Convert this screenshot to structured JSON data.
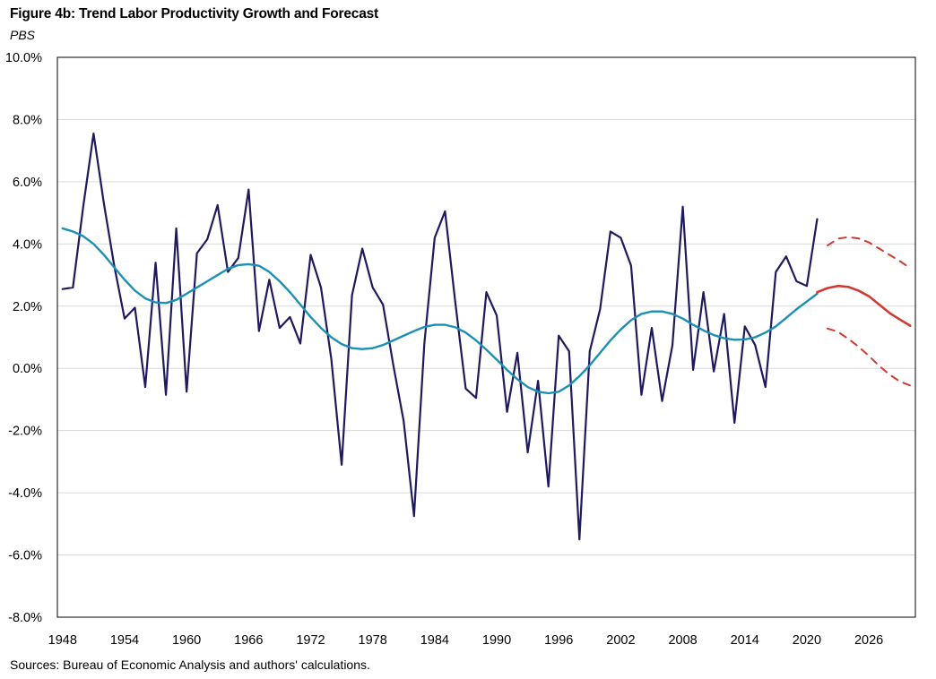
{
  "chart_data": {
    "type": "line",
    "title": "Figure 4b: Trend Labor Productivity Growth and Forecast",
    "subtitle": "PBS",
    "source": "Sources: Bureau of Economic Analysis and authors' calculations.",
    "xlabel": "",
    "ylabel": "",
    "xlim": [
      1947.5,
      2030.5
    ],
    "ylim": [
      -8,
      10
    ],
    "y_ticks": [
      -8,
      -6,
      -4,
      -2,
      0,
      2,
      4,
      6,
      8,
      10
    ],
    "y_tick_labels": [
      "-8.0%",
      "-6.0%",
      "-4.0%",
      "-2.0%",
      "0.0%",
      "2.0%",
      "4.0%",
      "6.0%",
      "8.0%",
      "10.0%"
    ],
    "x_ticks": [
      1948,
      1954,
      1960,
      1966,
      1972,
      1978,
      1984,
      1990,
      1996,
      2002,
      2008,
      2014,
      2020,
      2026
    ],
    "x_tick_labels": [
      "1948",
      "1954",
      "1960",
      "1966",
      "1972",
      "1978",
      "1984",
      "1990",
      "1996",
      "2002",
      "2008",
      "2014",
      "2020",
      "2026"
    ],
    "grid": true,
    "legend": "none",
    "colors": {
      "actual": "#1f1a5e",
      "trend": "#1c8fb4",
      "forecast": "#cf3a32",
      "grid": "#d9d9d9",
      "border": "#000000"
    },
    "series": [
      {
        "name": "Labor productivity growth",
        "style": "solid",
        "x": [
          1948,
          1949,
          1950,
          1951,
          1952,
          1953,
          1954,
          1955,
          1956,
          1957,
          1958,
          1959,
          1960,
          1961,
          1962,
          1963,
          1964,
          1965,
          1966,
          1967,
          1968,
          1969,
          1970,
          1971,
          1972,
          1973,
          1974,
          1975,
          1976,
          1977,
          1978,
          1979,
          1980,
          1981,
          1982,
          1983,
          1984,
          1985,
          1986,
          1987,
          1988,
          1989,
          1990,
          1991,
          1992,
          1993,
          1994,
          1995,
          1996,
          1997,
          1998,
          1999,
          2000,
          2001,
          2002,
          2003,
          2004,
          2005,
          2006,
          2007,
          2008,
          2009,
          2010,
          2011,
          2012,
          2013,
          2014,
          2015,
          2016,
          2017,
          2018,
          2019,
          2020,
          2021
        ],
        "values": [
          2.55,
          2.6,
          5.2,
          7.55,
          5.3,
          3.3,
          1.6,
          1.95,
          -0.6,
          3.4,
          -0.85,
          4.5,
          -0.75,
          3.7,
          4.15,
          5.25,
          3.1,
          3.55,
          5.75,
          1.2,
          2.85,
          1.3,
          1.65,
          0.8,
          3.65,
          2.6,
          0.3,
          -3.1,
          2.35,
          3.85,
          2.6,
          2.05,
          0.1,
          -1.7,
          -4.75,
          0.8,
          4.2,
          5.05,
          2.1,
          -0.65,
          -0.95,
          2.45,
          1.7,
          -1.4,
          0.5,
          -2.7,
          -0.4,
          -3.8,
          1.05,
          0.55,
          -5.5,
          0.55,
          1.9,
          4.4,
          4.2,
          3.3,
          -0.85,
          1.3,
          -1.05,
          0.75,
          5.2,
          -0.05,
          2.45,
          -0.1,
          1.75,
          -1.75,
          1.35,
          0.75,
          -0.6,
          3.1,
          3.6,
          2.8,
          2.65,
          4.8
        ]
      },
      {
        "name": "Trend",
        "style": "solid",
        "x": [
          1948,
          1949,
          1950,
          1951,
          1952,
          1953,
          1954,
          1955,
          1956,
          1957,
          1958,
          1959,
          1960,
          1961,
          1962,
          1963,
          1964,
          1965,
          1966,
          1967,
          1968,
          1969,
          1970,
          1971,
          1972,
          1973,
          1974,
          1975,
          1976,
          1977,
          1978,
          1979,
          1980,
          1981,
          1982,
          1983,
          1984,
          1985,
          1986,
          1987,
          1988,
          1989,
          1990,
          1991,
          1992,
          1993,
          1994,
          1995,
          1996,
          1997,
          1998,
          1999,
          2000,
          2001,
          2002,
          2003,
          2004,
          2005,
          2006,
          2007,
          2008,
          2009,
          2010,
          2011,
          2012,
          2013,
          2014,
          2015,
          2016,
          2017,
          2018,
          2019,
          2020,
          2021
        ],
        "values": [
          4.5,
          4.4,
          4.25,
          4.0,
          3.65,
          3.25,
          2.85,
          2.5,
          2.25,
          2.12,
          2.1,
          2.2,
          2.4,
          2.6,
          2.8,
          3.0,
          3.2,
          3.32,
          3.35,
          3.3,
          3.1,
          2.8,
          2.45,
          2.05,
          1.65,
          1.3,
          1.0,
          0.78,
          0.65,
          0.62,
          0.65,
          0.75,
          0.9,
          1.05,
          1.2,
          1.33,
          1.4,
          1.4,
          1.32,
          1.15,
          0.9,
          0.6,
          0.28,
          -0.05,
          -0.35,
          -0.6,
          -0.75,
          -0.8,
          -0.75,
          -0.55,
          -0.25,
          0.1,
          0.5,
          0.9,
          1.25,
          1.55,
          1.75,
          1.83,
          1.83,
          1.75,
          1.6,
          1.4,
          1.22,
          1.07,
          0.97,
          0.92,
          0.93,
          1.0,
          1.15,
          1.35,
          1.62,
          1.9,
          2.15,
          2.4
        ]
      },
      {
        "name": "Forecast",
        "style": "solid",
        "x": [
          2021,
          2022,
          2023,
          2024,
          2025,
          2026,
          2027,
          2028,
          2029,
          2030
        ],
        "values": [
          2.45,
          2.58,
          2.65,
          2.62,
          2.5,
          2.32,
          2.05,
          1.78,
          1.57,
          1.37
        ]
      },
      {
        "name": "Forecast upper band",
        "style": "dashed",
        "x": [
          2022,
          2023,
          2024,
          2025,
          2026,
          2027,
          2028,
          2029,
          2030
        ],
        "values": [
          3.95,
          4.17,
          4.22,
          4.18,
          4.05,
          3.85,
          3.65,
          3.45,
          3.22
        ]
      },
      {
        "name": "Forecast lower band",
        "style": "dashed",
        "x": [
          2022,
          2023,
          2024,
          2025,
          2026,
          2027,
          2028,
          2029,
          2030
        ],
        "values": [
          1.28,
          1.18,
          0.95,
          0.7,
          0.4,
          0.08,
          -0.2,
          -0.42,
          -0.55
        ]
      }
    ]
  }
}
